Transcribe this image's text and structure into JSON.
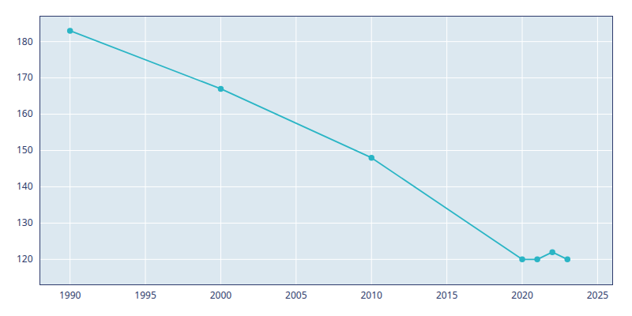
{
  "chart_data": {
    "type": "line",
    "x": [
      1990,
      2000,
      2010,
      2020,
      2021,
      2022,
      2023
    ],
    "values": [
      183,
      167,
      148,
      120,
      120,
      122,
      120
    ],
    "color": "#2ab5c5",
    "marker": "circle",
    "xlim": [
      1988,
      2026
    ],
    "ylim": [
      113,
      187
    ],
    "xticks": [
      1990,
      1995,
      2000,
      2005,
      2010,
      2015,
      2020,
      2025
    ],
    "yticks": [
      120,
      130,
      140,
      150,
      160,
      170,
      180
    ],
    "grid": true
  }
}
